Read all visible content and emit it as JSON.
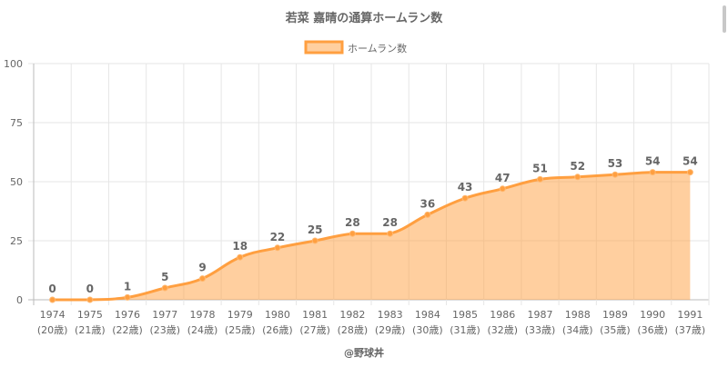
{
  "colors": {
    "line": "#ff9f40",
    "fill": "rgba(255,159,64,0.5)",
    "grid": "#e6e6e6",
    "text": "#666666",
    "title": "#666666"
  },
  "chart_data": {
    "type": "area",
    "title": "若菜 嘉晴の通算ホームラン数",
    "watermark": "@野球丼",
    "legend_position": "top",
    "grid": true,
    "ylim": [
      0,
      100
    ],
    "yticks": [
      "0",
      "25",
      "50",
      "75",
      "100"
    ],
    "ytick_values": [
      0,
      25,
      50,
      75,
      100
    ],
    "categories": [
      "1974",
      "1975",
      "1976",
      "1977",
      "1978",
      "1979",
      "1980",
      "1981",
      "1982",
      "1983",
      "1984",
      "1985",
      "1986",
      "1987",
      "1988",
      "1989",
      "1990",
      "1991"
    ],
    "age_labels": [
      "(20歳)",
      "(21歳)",
      "(22歳)",
      "(23歳)",
      "(24歳)",
      "(25歳)",
      "(26歳)",
      "(27歳)",
      "(28歳)",
      "(29歳)",
      "(30歳)",
      "(31歳)",
      "(32歳)",
      "(33歳)",
      "(34歳)",
      "(35歳)",
      "(36歳)",
      "(37歳)"
    ],
    "series": [
      {
        "name": "ホームラン数",
        "values": [
          0,
          0,
          1,
          5,
          9,
          18,
          22,
          25,
          28,
          28,
          36,
          43,
          47,
          51,
          52,
          53,
          54,
          54
        ],
        "data_labels": [
          "0",
          "0",
          "1",
          "5",
          "9",
          "18",
          "22",
          "25",
          "28",
          "28",
          "36",
          "43",
          "47",
          "51",
          "52",
          "53",
          "54",
          "54"
        ]
      }
    ]
  }
}
